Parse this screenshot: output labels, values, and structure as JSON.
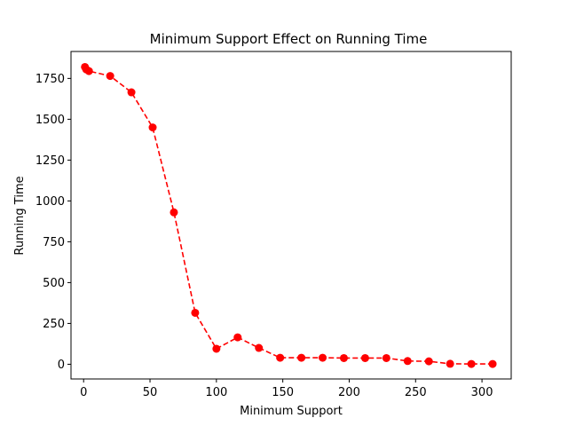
{
  "chart_data": {
    "type": "line",
    "title": "Minimum Support Effect on Running Time",
    "xlabel": "Minimum Support",
    "ylabel": "Running Time",
    "xlim": [
      -9.5,
      322
    ],
    "ylim": [
      -90,
      1915
    ],
    "xticks": [
      0,
      50,
      100,
      150,
      200,
      250,
      300
    ],
    "yticks": [
      0,
      250,
      500,
      750,
      1000,
      1250,
      1500,
      1750
    ],
    "grid": false,
    "legend": "none",
    "series": [
      {
        "color": "#ff0000",
        "line_style": "dashed",
        "marker": "circle",
        "x": [
          1,
          2,
          4,
          20,
          36,
          52,
          68,
          84,
          100,
          116,
          132,
          148,
          164,
          180,
          196,
          212,
          228,
          244,
          260,
          276,
          292,
          308
        ],
        "y": [
          1820,
          1805,
          1795,
          1765,
          1665,
          1450,
          930,
          315,
          95,
          165,
          100,
          40,
          40,
          40,
          38,
          38,
          38,
          20,
          18,
          3,
          2,
          2
        ]
      }
    ]
  }
}
